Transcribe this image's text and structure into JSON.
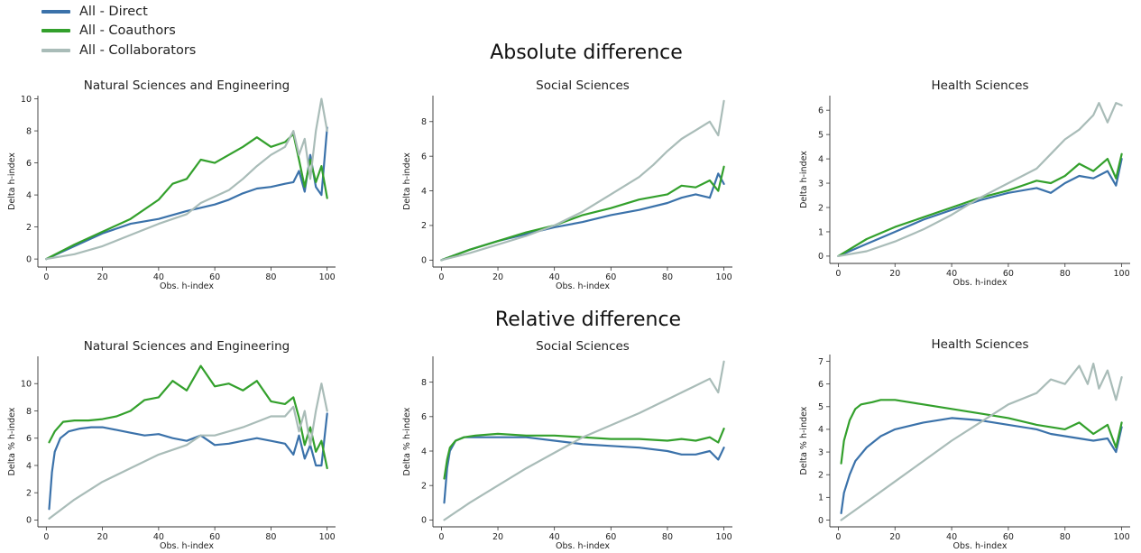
{
  "figure": {
    "section_titles": [
      "Absolute difference",
      "Relative difference"
    ],
    "legend": [
      {
        "label": "All - Direct",
        "color": "#3b72aa"
      },
      {
        "label": "All - Coauthors",
        "color": "#33a02c"
      },
      {
        "label": "All - Collaborators",
        "color": "#a9bcb8"
      }
    ]
  },
  "chart_data": [
    {
      "type": "line",
      "section": "Absolute difference",
      "title": "Natural Sciences and Engineering",
      "xlabel": "Obs. h-index",
      "ylabel": "Delta h-index",
      "xlim": [
        -3,
        103
      ],
      "ylim": [
        -0.5,
        10.2
      ],
      "xticks": [
        0,
        20,
        40,
        60,
        80,
        100
      ],
      "yticks": [
        0,
        2,
        4,
        6,
        8,
        10
      ],
      "series": [
        {
          "name": "All - Direct",
          "color": "#3b72aa",
          "x": [
            0,
            10,
            20,
            30,
            40,
            50,
            55,
            60,
            65,
            70,
            75,
            80,
            85,
            88,
            90,
            92,
            94,
            96,
            98,
            100
          ],
          "y": [
            0,
            0.8,
            1.6,
            2.2,
            2.5,
            3.0,
            3.2,
            3.4,
            3.7,
            4.1,
            4.4,
            4.5,
            4.7,
            4.8,
            5.5,
            4.2,
            6.5,
            4.5,
            4.0,
            8.2
          ]
        },
        {
          "name": "All - Coauthors",
          "color": "#33a02c",
          "x": [
            0,
            10,
            20,
            30,
            40,
            45,
            50,
            55,
            60,
            65,
            70,
            75,
            80,
            85,
            88,
            90,
            92,
            94,
            96,
            98,
            100
          ],
          "y": [
            0,
            0.9,
            1.7,
            2.5,
            3.7,
            4.7,
            5.0,
            6.2,
            6.0,
            6.5,
            7.0,
            7.6,
            7.0,
            7.3,
            7.8,
            6.2,
            4.5,
            6.2,
            4.8,
            5.8,
            3.8
          ]
        },
        {
          "name": "All - Collaborators",
          "color": "#a9bcb8",
          "x": [
            0,
            10,
            20,
            30,
            40,
            50,
            55,
            60,
            65,
            70,
            75,
            80,
            85,
            88,
            90,
            92,
            94,
            96,
            98,
            100
          ],
          "y": [
            0,
            0.3,
            0.8,
            1.5,
            2.2,
            2.8,
            3.5,
            3.9,
            4.3,
            5.0,
            5.8,
            6.5,
            7.0,
            8.0,
            6.5,
            7.5,
            5.0,
            8.0,
            10.0,
            8.0
          ]
        }
      ]
    },
    {
      "type": "line",
      "section": "Absolute difference",
      "title": "Social Sciences",
      "xlabel": "Obs. h-index",
      "ylabel": "Delta h-index",
      "xlim": [
        -3,
        103
      ],
      "ylim": [
        -0.4,
        9.5
      ],
      "xticks": [
        0,
        20,
        40,
        60,
        80,
        100
      ],
      "yticks": [
        0,
        2,
        4,
        6,
        8
      ],
      "series": [
        {
          "name": "All - Direct",
          "color": "#3b72aa",
          "x": [
            0,
            10,
            20,
            30,
            40,
            50,
            60,
            70,
            80,
            85,
            90,
            95,
            98,
            100
          ],
          "y": [
            0,
            0.6,
            1.1,
            1.5,
            1.9,
            2.2,
            2.6,
            2.9,
            3.3,
            3.6,
            3.8,
            3.6,
            5.0,
            4.4
          ]
        },
        {
          "name": "All - Coauthors",
          "color": "#33a02c",
          "x": [
            0,
            10,
            20,
            30,
            40,
            50,
            60,
            70,
            80,
            85,
            90,
            95,
            98,
            100
          ],
          "y": [
            0,
            0.6,
            1.1,
            1.6,
            2.0,
            2.6,
            3.0,
            3.5,
            3.8,
            4.3,
            4.2,
            4.6,
            4.0,
            5.4
          ]
        },
        {
          "name": "All - Collaborators",
          "color": "#a9bcb8",
          "x": [
            0,
            10,
            20,
            30,
            40,
            50,
            60,
            70,
            75,
            80,
            85,
            90,
            95,
            98,
            100
          ],
          "y": [
            0,
            0.4,
            0.9,
            1.4,
            2.0,
            2.8,
            3.8,
            4.8,
            5.5,
            6.3,
            7.0,
            7.5,
            8.0,
            7.2,
            9.2
          ]
        }
      ]
    },
    {
      "type": "line",
      "section": "Absolute difference",
      "title": "Health Sciences",
      "xlabel": "Obs. h-index",
      "ylabel": "Delta h-index",
      "xlim": [
        -3,
        103
      ],
      "ylim": [
        -0.3,
        6.6
      ],
      "xticks": [
        0,
        20,
        40,
        60,
        80,
        100
      ],
      "yticks": [
        0,
        1,
        2,
        3,
        4,
        5,
        6
      ],
      "series": [
        {
          "name": "All - Direct",
          "color": "#3b72aa",
          "x": [
            0,
            10,
            20,
            30,
            40,
            50,
            60,
            70,
            75,
            80,
            85,
            90,
            95,
            98,
            100
          ],
          "y": [
            0,
            0.5,
            1.0,
            1.5,
            1.9,
            2.3,
            2.6,
            2.8,
            2.6,
            3.0,
            3.3,
            3.2,
            3.5,
            2.9,
            4.0
          ]
        },
        {
          "name": "All - Coauthors",
          "color": "#33a02c",
          "x": [
            0,
            10,
            20,
            30,
            40,
            50,
            60,
            70,
            75,
            80,
            85,
            90,
            95,
            98,
            100
          ],
          "y": [
            0,
            0.7,
            1.2,
            1.6,
            2.0,
            2.4,
            2.7,
            3.1,
            3.0,
            3.3,
            3.8,
            3.5,
            4.0,
            3.2,
            4.2
          ]
        },
        {
          "name": "All - Collaborators",
          "color": "#a9bcb8",
          "x": [
            0,
            10,
            20,
            30,
            40,
            50,
            60,
            70,
            75,
            80,
            85,
            90,
            92,
            95,
            98,
            100
          ],
          "y": [
            0,
            0.2,
            0.6,
            1.1,
            1.7,
            2.4,
            3.0,
            3.6,
            4.2,
            4.8,
            5.2,
            5.8,
            6.3,
            5.5,
            6.3,
            6.2
          ]
        }
      ]
    },
    {
      "type": "line",
      "section": "Relative difference",
      "title": "Natural Sciences and Engineering",
      "xlabel": "Obs. h-index",
      "ylabel": "Delta % h-index",
      "xlim": [
        -3,
        103
      ],
      "ylim": [
        -0.5,
        12
      ],
      "xticks": [
        0,
        20,
        40,
        60,
        80,
        100
      ],
      "yticks": [
        0,
        2,
        4,
        6,
        8,
        10
      ],
      "series": [
        {
          "name": "All - Direct",
          "color": "#3b72aa",
          "x": [
            1,
            2,
            3,
            5,
            8,
            12,
            16,
            20,
            25,
            30,
            35,
            40,
            45,
            50,
            55,
            60,
            65,
            70,
            75,
            80,
            85,
            88,
            90,
            92,
            94,
            96,
            98,
            100
          ],
          "y": [
            0.8,
            3.5,
            5.0,
            6.0,
            6.5,
            6.7,
            6.8,
            6.8,
            6.6,
            6.4,
            6.2,
            6.3,
            6.0,
            5.8,
            6.2,
            5.5,
            5.6,
            5.8,
            6.0,
            5.8,
            5.6,
            4.8,
            6.2,
            4.5,
            5.5,
            4.0,
            4.0,
            7.8
          ]
        },
        {
          "name": "All - Coauthors",
          "color": "#33a02c",
          "x": [
            1,
            3,
            6,
            10,
            15,
            20,
            25,
            30,
            35,
            40,
            45,
            50,
            55,
            60,
            65,
            70,
            75,
            80,
            85,
            88,
            90,
            92,
            94,
            96,
            98,
            100
          ],
          "y": [
            5.7,
            6.5,
            7.2,
            7.3,
            7.3,
            7.4,
            7.6,
            8.0,
            8.8,
            9.0,
            10.2,
            9.5,
            11.3,
            9.8,
            10.0,
            9.5,
            10.2,
            8.7,
            8.5,
            9.0,
            7.5,
            5.5,
            6.8,
            5.0,
            5.8,
            3.8
          ]
        },
        {
          "name": "All - Collaborators",
          "color": "#a9bcb8",
          "x": [
            1,
            10,
            20,
            30,
            40,
            50,
            55,
            60,
            65,
            70,
            75,
            80,
            85,
            88,
            90,
            92,
            94,
            96,
            98,
            100
          ],
          "y": [
            0.1,
            1.5,
            2.8,
            3.8,
            4.8,
            5.5,
            6.2,
            6.2,
            6.5,
            6.8,
            7.2,
            7.6,
            7.6,
            8.3,
            6.5,
            8.0,
            5.5,
            8.0,
            10.0,
            8.0
          ]
        }
      ]
    },
    {
      "type": "line",
      "section": "Relative difference",
      "title": "Social Sciences",
      "xlabel": "Obs. h-index",
      "ylabel": "Delta % h-index",
      "xlim": [
        -3,
        103
      ],
      "ylim": [
        -0.4,
        9.5
      ],
      "xticks": [
        0,
        20,
        40,
        60,
        80,
        100
      ],
      "yticks": [
        0,
        2,
        4,
        6,
        8
      ],
      "series": [
        {
          "name": "All - Direct",
          "color": "#3b72aa",
          "x": [
            1,
            2,
            3,
            5,
            8,
            12,
            20,
            30,
            40,
            50,
            60,
            70,
            80,
            85,
            90,
            95,
            98,
            100
          ],
          "y": [
            1.0,
            3.0,
            4.0,
            4.6,
            4.8,
            4.8,
            4.8,
            4.8,
            4.6,
            4.4,
            4.3,
            4.2,
            4.0,
            3.8,
            3.8,
            4.0,
            3.5,
            4.2
          ]
        },
        {
          "name": "All - Coauthors",
          "color": "#33a02c",
          "x": [
            1,
            2,
            3,
            5,
            8,
            12,
            20,
            30,
            40,
            50,
            60,
            70,
            80,
            85,
            90,
            95,
            98,
            100
          ],
          "y": [
            2.4,
            3.5,
            4.2,
            4.6,
            4.8,
            4.9,
            5.0,
            4.9,
            4.9,
            4.8,
            4.7,
            4.7,
            4.6,
            4.7,
            4.6,
            4.8,
            4.5,
            5.3
          ]
        },
        {
          "name": "All - Collaborators",
          "color": "#a9bcb8",
          "x": [
            1,
            10,
            20,
            30,
            40,
            50,
            60,
            70,
            75,
            80,
            85,
            90,
            95,
            98,
            100
          ],
          "y": [
            0,
            1.0,
            2.0,
            3.0,
            3.9,
            4.8,
            5.5,
            6.2,
            6.6,
            7.0,
            7.4,
            7.8,
            8.2,
            7.4,
            9.2
          ]
        }
      ]
    },
    {
      "type": "line",
      "section": "Relative difference",
      "title": "Health Sciences",
      "xlabel": "Obs. h-index",
      "ylabel": "Delta % h-index",
      "xlim": [
        -3,
        103
      ],
      "ylim": [
        -0.3,
        7.3
      ],
      "xticks": [
        0,
        20,
        40,
        60,
        80,
        100
      ],
      "yticks": [
        0,
        1,
        2,
        3,
        4,
        5,
        6,
        7
      ],
      "series": [
        {
          "name": "All - Direct",
          "color": "#3b72aa",
          "x": [
            1,
            2,
            4,
            6,
            10,
            15,
            20,
            30,
            40,
            50,
            60,
            70,
            75,
            80,
            85,
            90,
            95,
            98,
            100
          ],
          "y": [
            0.3,
            1.2,
            2.0,
            2.6,
            3.2,
            3.7,
            4.0,
            4.3,
            4.5,
            4.4,
            4.2,
            4.0,
            3.8,
            3.7,
            3.6,
            3.5,
            3.6,
            3.0,
            4.1
          ]
        },
        {
          "name": "All - Coauthors",
          "color": "#33a02c",
          "x": [
            1,
            2,
            4,
            6,
            8,
            12,
            15,
            20,
            30,
            40,
            50,
            60,
            70,
            80,
            85,
            90,
            95,
            98,
            100
          ],
          "y": [
            2.5,
            3.5,
            4.4,
            4.9,
            5.1,
            5.2,
            5.3,
            5.3,
            5.1,
            4.9,
            4.7,
            4.5,
            4.2,
            4.0,
            4.3,
            3.8,
            4.2,
            3.2,
            4.3
          ]
        },
        {
          "name": "All - Collaborators",
          "color": "#a9bcb8",
          "x": [
            1,
            10,
            20,
            30,
            40,
            50,
            60,
            70,
            75,
            80,
            85,
            88,
            90,
            92,
            95,
            98,
            100
          ],
          "y": [
            0,
            0.8,
            1.7,
            2.6,
            3.5,
            4.3,
            5.1,
            5.6,
            6.2,
            6.0,
            6.8,
            6.0,
            6.9,
            5.8,
            6.6,
            5.3,
            6.3
          ]
        }
      ]
    }
  ]
}
